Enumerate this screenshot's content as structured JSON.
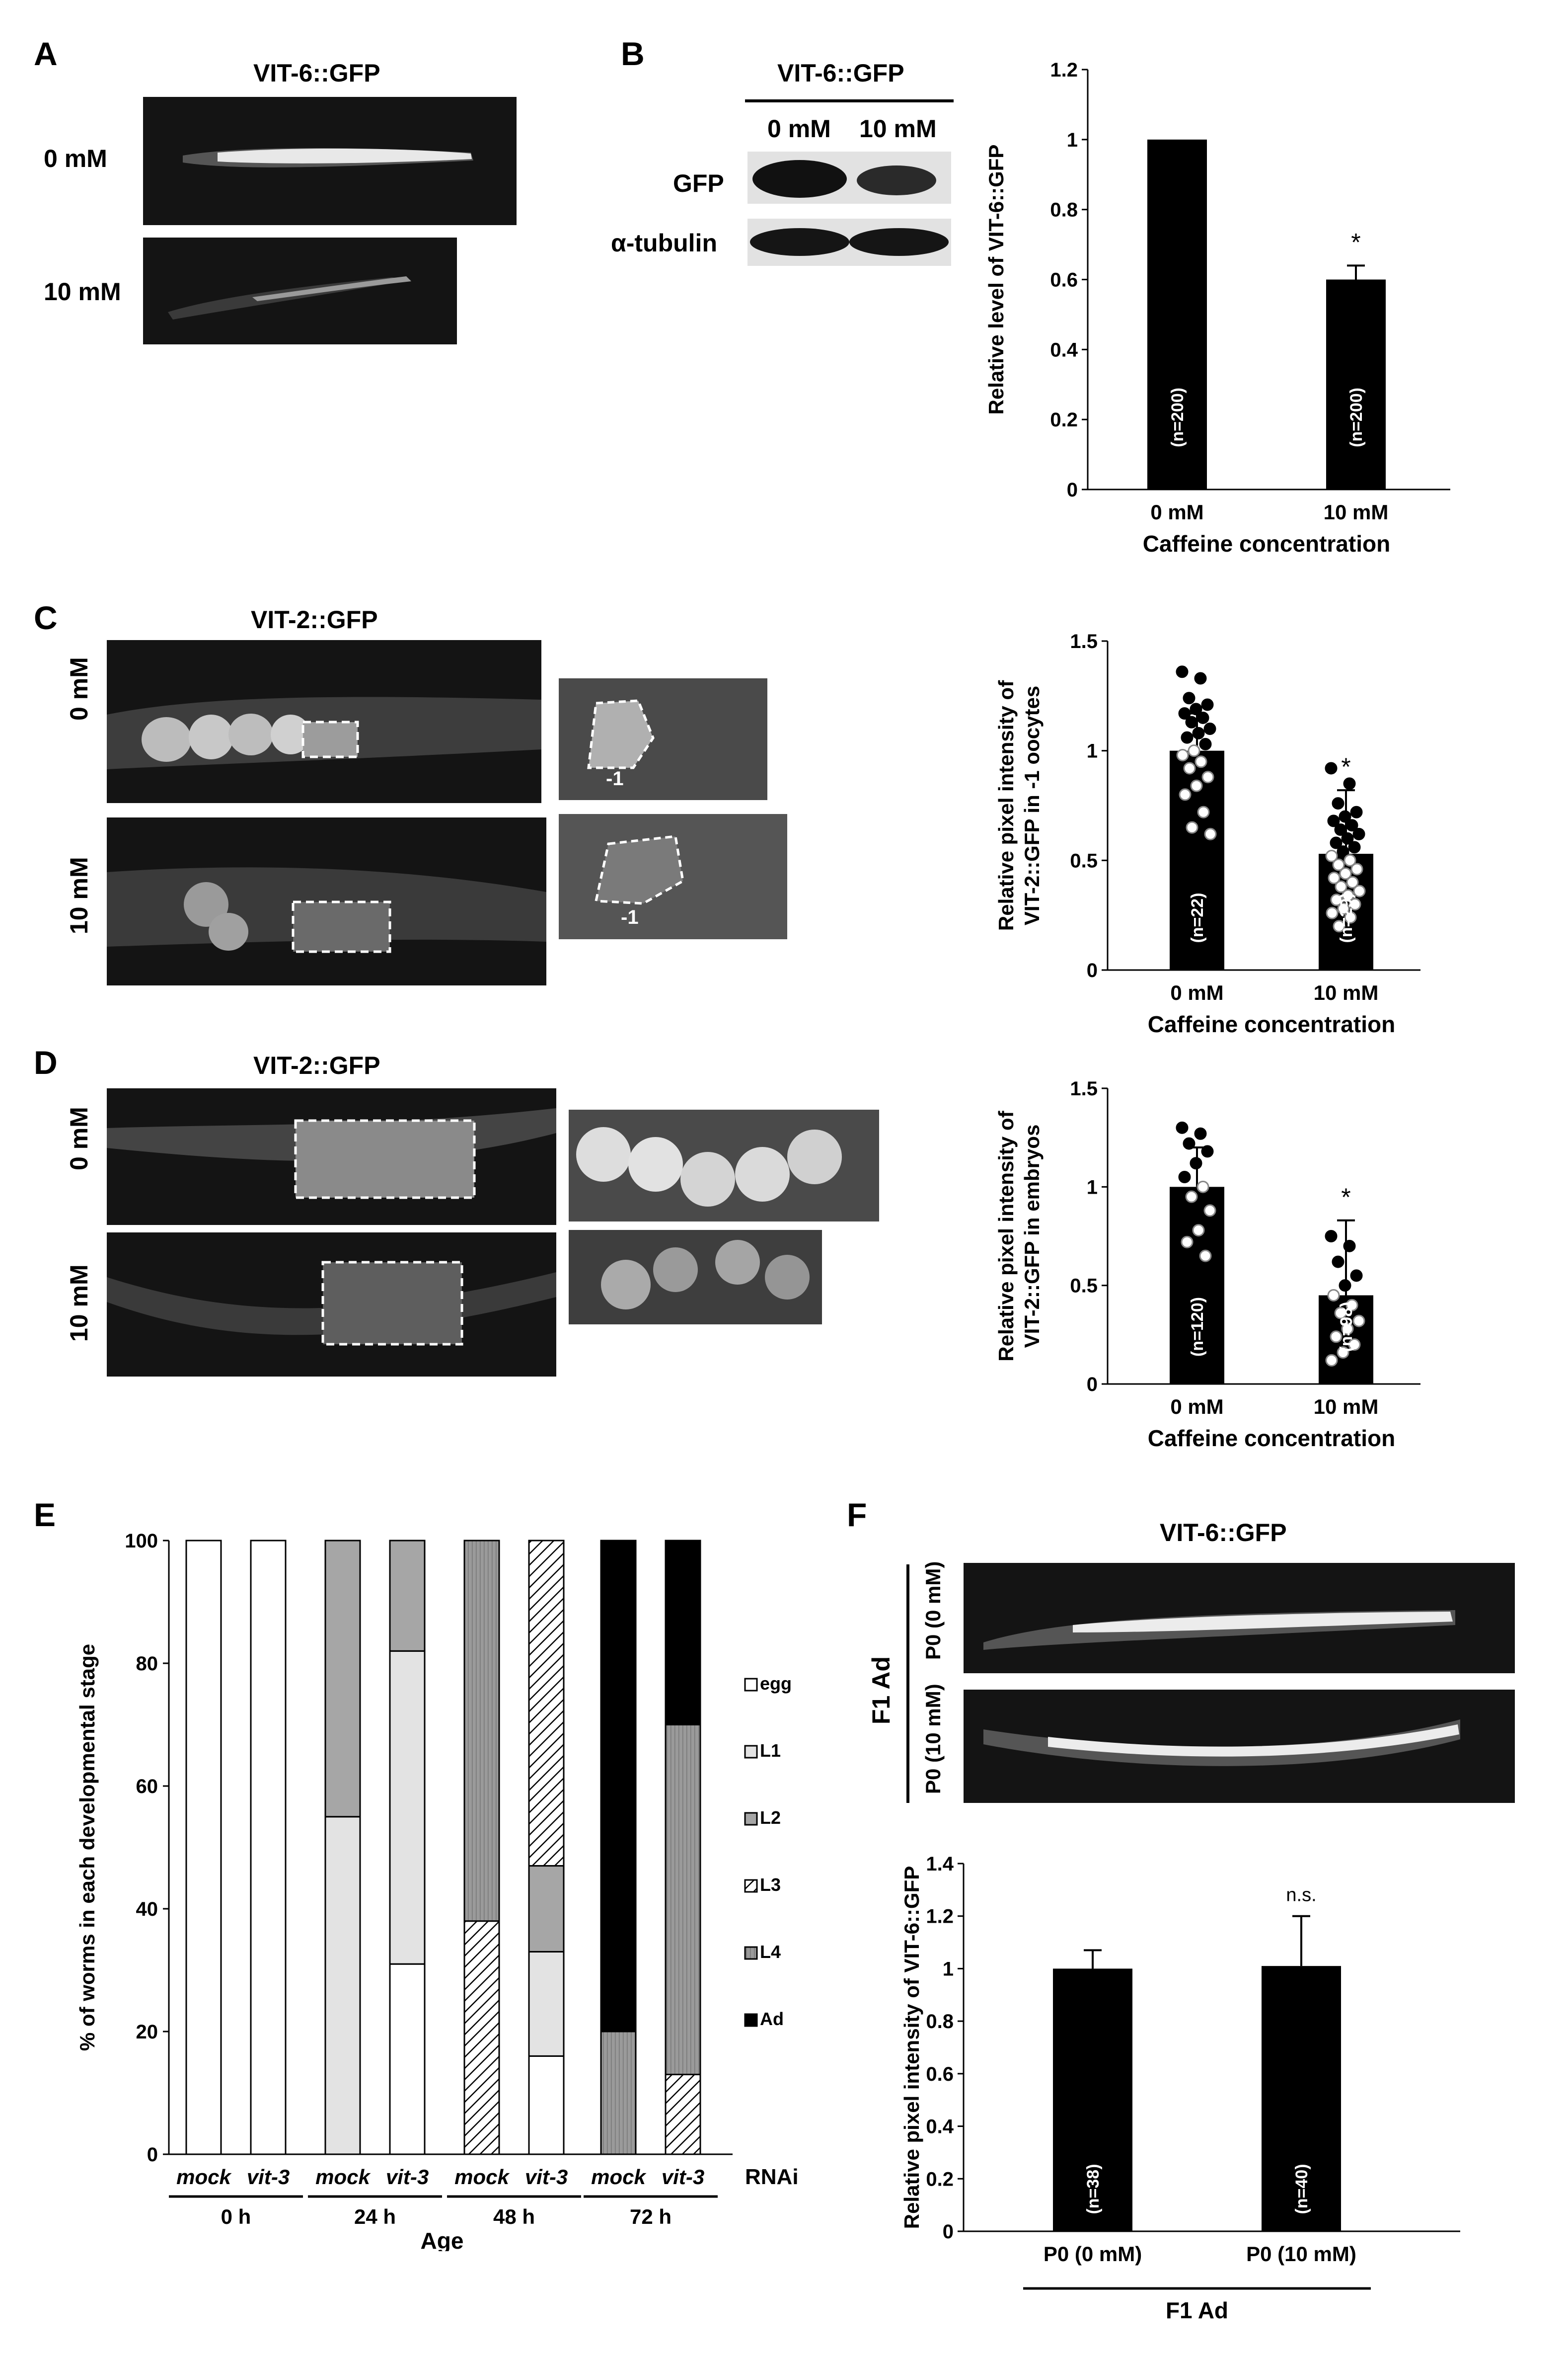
{
  "panels": {
    "A": {
      "letter": "A",
      "title": "VIT-6::GFP",
      "rows": [
        "0 mM",
        "10 mM"
      ]
    },
    "B": {
      "letter": "B",
      "blot_title": "VIT-6::GFP",
      "lanes": [
        "0 mM",
        "10 mM"
      ],
      "bands": [
        "GFP",
        "α-tubulin"
      ]
    },
    "C": {
      "letter": "C",
      "title": "VIT-2::GFP",
      "rows": [
        "0 mM",
        "10 mM"
      ],
      "oocyte_label": "-1"
    },
    "D": {
      "letter": "D",
      "title": "VIT-2::GFP",
      "rows": [
        "0 mM",
        "10 mM"
      ]
    },
    "E": {
      "letter": "E"
    },
    "F": {
      "letter": "F",
      "title": "VIT-6::GFP",
      "group": "F1 Ad",
      "rows": [
        "P0 (0 mM)",
        "P0 (10 mM)"
      ]
    }
  },
  "chart_data": [
    {
      "id": "B",
      "type": "bar",
      "categories": [
        "0 mM",
        "10 mM"
      ],
      "values": [
        1,
        0.6
      ],
      "errors": [
        0,
        0.04
      ],
      "n_labels": [
        "(n=200)",
        "(n=200)"
      ],
      "significance": [
        "",
        "*"
      ],
      "xlabel": "Caffeine concentration",
      "ylabel": "Relative level of VIT-6::GFP",
      "ylim": [
        0,
        1.2
      ],
      "yticks": [
        "0",
        "0.2",
        "0.4",
        "0.6",
        "0.8",
        "1",
        "1.2"
      ]
    },
    {
      "id": "C",
      "type": "bar",
      "categories": [
        "0 mM",
        "10 mM"
      ],
      "values": [
        1,
        0.53
      ],
      "errors": [
        0.17,
        0.29
      ],
      "n_labels": [
        "(n=22)",
        "(n=29)"
      ],
      "significance": [
        "",
        "*"
      ],
      "points": [
        [
          1.36,
          1.33,
          1.24,
          1.21,
          1.19,
          1.17,
          1.15,
          1.13,
          1.1,
          1.08,
          1.06,
          1.03,
          1.0,
          0.98,
          0.95,
          0.92,
          0.88,
          0.84,
          0.8,
          0.72,
          0.65,
          0.62
        ],
        [
          0.92,
          0.85,
          0.76,
          0.72,
          0.7,
          0.68,
          0.66,
          0.64,
          0.62,
          0.6,
          0.58,
          0.56,
          0.54,
          0.52,
          0.5,
          0.48,
          0.46,
          0.44,
          0.42,
          0.4,
          0.38,
          0.36,
          0.34,
          0.32,
          0.3,
          0.28,
          0.26,
          0.24,
          0.2
        ]
      ],
      "xlabel": "Caffeine concentration",
      "ylabel": [
        "Relative pixel intensity of",
        "VIT-2::GFP in -1 oocytes"
      ],
      "ylim": [
        0,
        1.5
      ],
      "yticks": [
        "0",
        "0.5",
        "1",
        "1.5"
      ]
    },
    {
      "id": "D",
      "type": "bar",
      "categories": [
        "0 mM",
        "10 mM"
      ],
      "values": [
        1,
        0.45
      ],
      "errors": [
        0.2,
        0.38
      ],
      "n_labels": [
        "(n=120)",
        "(n=98)"
      ],
      "significance": [
        "",
        "*"
      ],
      "points": [
        [
          1.3,
          1.27,
          1.22,
          1.18,
          1.12,
          1.05,
          1.0,
          0.95,
          0.88,
          0.78,
          0.72,
          0.65
        ],
        [
          0.75,
          0.7,
          0.62,
          0.55,
          0.5,
          0.45,
          0.4,
          0.36,
          0.32,
          0.28,
          0.24,
          0.2,
          0.16,
          0.12
        ]
      ],
      "xlabel": "Caffeine concentration",
      "ylabel": [
        "Relative pixel intensity of",
        "VIT-2::GFP in embryos"
      ],
      "ylim": [
        0,
        1.5
      ],
      "yticks": [
        "0",
        "0.5",
        "1",
        "1.5"
      ]
    },
    {
      "id": "E",
      "type": "bar",
      "subtype": "stacked",
      "categories": [
        "mock",
        "vit-3",
        "mock",
        "vit-3",
        "mock",
        "vit-3",
        "mock",
        "vit-3"
      ],
      "groups": [
        "0 h",
        "24 h",
        "48 h",
        "72 h"
      ],
      "group_label": "RNAi",
      "xlabel": "Age",
      "ylabel": "% of worms in each developmental stage",
      "ylim": [
        0,
        100
      ],
      "yticks": [
        "0",
        "20",
        "40",
        "60",
        "80",
        "100"
      ],
      "series": [
        {
          "name": "egg",
          "values": [
            100,
            100,
            0,
            31,
            0,
            16,
            0,
            0
          ]
        },
        {
          "name": "L1",
          "values": [
            0,
            0,
            55,
            51,
            0,
            17,
            0,
            0
          ]
        },
        {
          "name": "L2",
          "values": [
            0,
            0,
            45,
            18,
            0,
            14,
            0,
            0
          ]
        },
        {
          "name": "L3",
          "values": [
            0,
            0,
            0,
            0,
            38,
            53,
            0,
            13
          ]
        },
        {
          "name": "L4",
          "values": [
            0,
            0,
            0,
            0,
            62,
            0,
            20,
            57
          ]
        },
        {
          "name": "Ad",
          "values": [
            0,
            0,
            0,
            0,
            0,
            0,
            80,
            30
          ]
        }
      ],
      "colors": {
        "egg": "#ffffff",
        "L1": "#e3e3e3",
        "L2": "#a6a6a6",
        "L3": "hatch",
        "L4": "#8c8c8c",
        "Ad": "#000000"
      }
    },
    {
      "id": "F",
      "type": "bar",
      "categories": [
        "P0 (0 mM)",
        "P0 (10 mM)"
      ],
      "values": [
        1,
        1.01
      ],
      "errors": [
        0.07,
        0.19
      ],
      "n_labels": [
        "(n=38)",
        "(n=40)"
      ],
      "significance": [
        "",
        "n.s."
      ],
      "xlabel": "F1 Ad",
      "ylabel": "Relative pixel intensity of VIT-6::GFP",
      "ylim": [
        0,
        1.4
      ],
      "yticks": [
        "0",
        "0.2",
        "0.4",
        "0.6",
        "0.8",
        "1",
        "1.2",
        "1.4"
      ]
    }
  ]
}
